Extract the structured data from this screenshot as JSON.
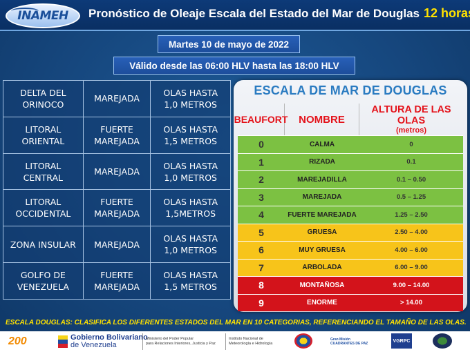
{
  "header": {
    "logo_text": "INAMEH",
    "title": "Pronóstico de Oleaje Escala del Estado del Mar de Douglas",
    "hours": "12 horas"
  },
  "date_label": "Martes 10 de mayo de 2022",
  "validity_label": "Válido desde las 06:00 HLV hasta las 18:00 HLV",
  "forecast_rows": [
    {
      "zone": "DELTA DEL\nORINOCO",
      "state": "MAREJADA",
      "waves": "OLAS HASTA\n1,0 METROS"
    },
    {
      "zone": "LITORAL\nORIENTAL",
      "state": "FUERTE\nMAREJADA",
      "waves": "OLAS HASTA\n1,5 METROS"
    },
    {
      "zone": "LITORAL\nCENTRAL",
      "state": "MAREJADA",
      "waves": "OLAS HASTA\n1,0 METROS"
    },
    {
      "zone": "LITORAL\nOCCIDENTAL",
      "state": "FUERTE\nMAREJADA",
      "waves": "OLAS HASTA\n1,5METROS"
    },
    {
      "zone": "ZONA INSULAR",
      "state": "MAREJADA",
      "waves": "OLAS HASTA\n1,0 METROS"
    },
    {
      "zone": "GOLFO DE\nVENEZUELA",
      "state": "FUERTE\nMAREJADA",
      "waves": "OLAS HASTA\n1,5 METROS"
    }
  ],
  "scale": {
    "title": "ESCALA  DE MAR DE DOUGLAS",
    "col_beaufort": "BEAUFORT",
    "col_nombre": "NOMBRE",
    "col_altura": "ALTURA DE LAS OLAS",
    "col_altura_unit": "(metros)",
    "rows": [
      {
        "beaufort": "0",
        "nombre": "CALMA",
        "altura": "0",
        "color": "#7cc142"
      },
      {
        "beaufort": "1",
        "nombre": "RIZADA",
        "altura": "0.1",
        "color": "#7cc142"
      },
      {
        "beaufort": "2",
        "nombre": "MAREJADILLA",
        "altura": "0.1 – 0.50",
        "color": "#7cc142"
      },
      {
        "beaufort": "3",
        "nombre": "MAREJADA",
        "altura": "0.5 – 1.25",
        "color": "#7cc142"
      },
      {
        "beaufort": "4",
        "nombre": "FUERTE MAREJADA",
        "altura": "1.25 – 2.50",
        "color": "#7cc142"
      },
      {
        "beaufort": "5",
        "nombre": "GRUESA",
        "altura": "2.50 – 4.00",
        "color": "#f7c41a"
      },
      {
        "beaufort": "6",
        "nombre": "MUY GRUESA",
        "altura": "4.00 – 6.00",
        "color": "#f7c41a"
      },
      {
        "beaufort": "7",
        "nombre": "ARBOLADA",
        "altura": "6.00 – 9.00",
        "color": "#f7c41a"
      },
      {
        "beaufort": "8",
        "nombre": "MONTAÑOSA",
        "altura": "9.00 – 14.00",
        "color": "#d3131b"
      },
      {
        "beaufort": "9",
        "nombre": "ENORME",
        "altura": "> 14.00",
        "color": "#d3131b"
      }
    ]
  },
  "note": "ESCALA DOUGLAS:  CLASIFICA LOS DIFERENTES ESTADOS DEL MAR EN 10 CATEGORIAS, REFERENCIANDO EL TAMAÑO DE LAS OLAS.",
  "footer_logos": {
    "bicentennial": "200",
    "gob_line1": "Gobierno Bolivariano",
    "gob_line2": "de Venezuela",
    "ministerio": "Ministerio del Poder Popular\npara Relaciones Interiores, Justicia y Paz",
    "instituto": "Instituto Nacional de\nMeteorología e Hidrología",
    "cuadrantes": "Gran Misión\nCUADRANTES DE PAZ",
    "vgrpc": "VGRPC"
  }
}
